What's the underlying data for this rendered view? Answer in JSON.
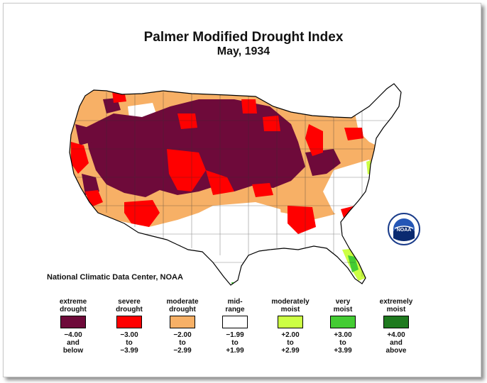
{
  "title": "Palmer Modified Drought Index",
  "subtitle": "May, 1934",
  "credit": "National Climatic Data Center, NOAA",
  "logo": {
    "text": "NOAA",
    "ring_text": "NATIONAL OCEANIC AND ATMOSPHERIC ADMINISTRATION · U.S. DEPARTMENT OF COMMERCE"
  },
  "legend": [
    {
      "label": "extreme\ndrought",
      "range": "−4.00\nand\nbelow",
      "color": "#6e0a3a"
    },
    {
      "label": "severe\ndrought",
      "range": "−3.00\nto\n−3.99",
      "color": "#ff0000"
    },
    {
      "label": "moderate\ndrought",
      "range": "−2.00\nto\n−2.99",
      "color": "#f7b066"
    },
    {
      "label": "mid-\nrange",
      "range": "−1.99\nto\n+1.99",
      "color": "#ffffff"
    },
    {
      "label": "moderately\nmoist",
      "range": "+2.00\nto\n+2.99",
      "color": "#ccff44"
    },
    {
      "label": "very\nmoist",
      "range": "+3.00\nto\n+3.99",
      "color": "#44cc33"
    },
    {
      "label": "extremely\nmoist",
      "range": "+4.00\nand\nabove",
      "color": "#1f7a1f"
    }
  ]
}
